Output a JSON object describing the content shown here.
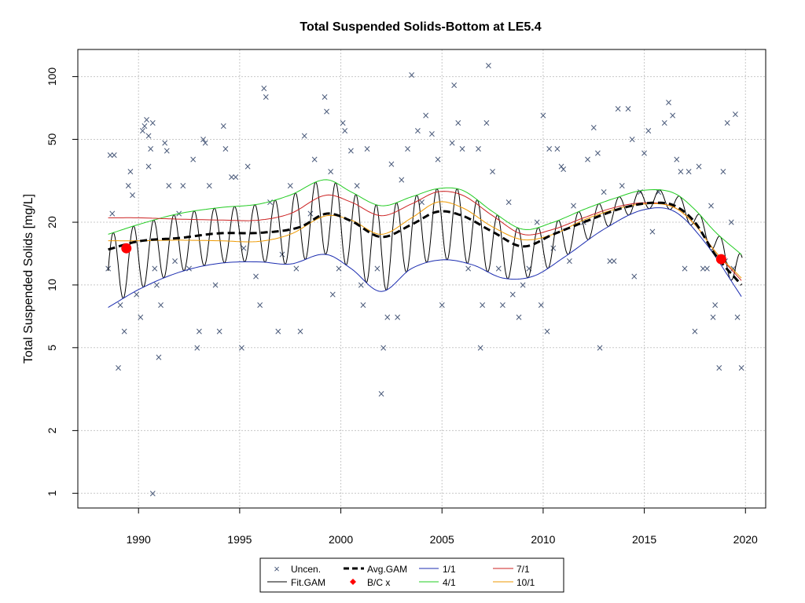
{
  "chart_data": {
    "type": "line",
    "title": "Total Suspended Solids-Bottom at LE5.4",
    "xlabel": "",
    "ylabel": "Total Suspended Solids [mg/L]",
    "xlim": [
      1987.0,
      2021.0
    ],
    "ylim": [
      0.85,
      135
    ],
    "yscale": "log",
    "grid": true,
    "x_ticks": [
      1990,
      1995,
      2000,
      2005,
      2010,
      2015,
      2020
    ],
    "y_ticks": [
      1,
      2,
      5,
      10,
      20,
      50,
      100
    ],
    "legend": {
      "placement": "bottom",
      "entries": [
        "Uncen.",
        "Avg.GAM",
        "1/1",
        "7/1",
        "Fit.GAM",
        "B/C x",
        "4/1",
        "10/1"
      ]
    },
    "colors": {
      "points": "#4a5a7a",
      "fit": "#000000",
      "avg": "#000000",
      "jan": "#1c2db0",
      "apr": "#22cc22",
      "jul": "#cc2222",
      "oct": "#ee9900",
      "bc": "#ff0000",
      "grid": "#c8c8c8"
    },
    "series": [
      {
        "name": "Avg.GAM",
        "style": "dashed",
        "x": [
          1988.5,
          1990,
          1992,
          1994,
          1996,
          1998,
          1999.3,
          2000.5,
          2002,
          2003.5,
          2004.8,
          2006,
          2007.5,
          2009,
          2010.5,
          2012,
          2014,
          2015.5,
          2016.5,
          2017.5,
          2018.5,
          2019.8
        ],
        "y": [
          14.8,
          16.2,
          16.8,
          17.7,
          17.8,
          19.0,
          22.0,
          20.3,
          17.0,
          19.5,
          22.5,
          21.5,
          18.0,
          15.3,
          17.5,
          20.0,
          23.5,
          24.8,
          24.0,
          20.0,
          14.0,
          10.0
        ]
      },
      {
        "name": "1/1",
        "x": [
          1988.5,
          1990,
          1992,
          1994,
          1996,
          1997.5,
          1999.3,
          2000.5,
          2002,
          2003.5,
          2005,
          2006.5,
          2008,
          2009.5,
          2011,
          2013,
          2015,
          2016.5,
          2018,
          2019.8
        ],
        "y": [
          7.8,
          9.5,
          11.5,
          12.7,
          12.9,
          12.6,
          14.0,
          12.0,
          9.3,
          12.0,
          13.2,
          12.5,
          10.8,
          11.0,
          13.5,
          18.5,
          23.0,
          22.5,
          16.0,
          8.8
        ]
      },
      {
        "name": "4/1",
        "x": [
          1988.5,
          1990,
          1992,
          1994,
          1996,
          1997.5,
          1999.3,
          2000.5,
          2002,
          2003.5,
          2004.8,
          2006,
          2007.5,
          2009,
          2010.5,
          2012,
          2013.5,
          2015,
          2016.5,
          2017.5,
          2018.5,
          2019.8
        ],
        "y": [
          17.5,
          19.5,
          22.0,
          23.5,
          24.5,
          27.0,
          32.0,
          28.0,
          24.0,
          26.5,
          29.0,
          28.5,
          22.5,
          18.5,
          20.0,
          23.0,
          26.0,
          28.5,
          27.5,
          23.0,
          18.0,
          14.0
        ]
      },
      {
        "name": "7/1",
        "x": [
          1988.5,
          1990,
          1992,
          1994,
          1996,
          1997.5,
          1999.3,
          2000.5,
          2002,
          2003.5,
          2004.8,
          2006,
          2007.5,
          2009,
          2010.5,
          2012,
          2013.5,
          2015,
          2016.5,
          2017.5,
          2018.5,
          2019.8
        ],
        "y": [
          21.0,
          21.0,
          20.7,
          20.5,
          20.5,
          22.0,
          27.0,
          25.0,
          21.5,
          24.5,
          28.0,
          27.0,
          21.5,
          17.5,
          18.5,
          21.0,
          23.5,
          24.8,
          23.5,
          19.5,
          14.5,
          10.5
        ]
      },
      {
        "name": "10/1",
        "x": [
          1988.5,
          1990,
          1992,
          1994,
          1996,
          1997.5,
          1999.3,
          2000.5,
          2002,
          2003.5,
          2004.8,
          2006,
          2007.5,
          2009,
          2010.5,
          2012,
          2013.5,
          2015,
          2016.5,
          2017.5,
          2018.5,
          2019.8
        ],
        "y": [
          16.3,
          16.3,
          16.4,
          16.3,
          16.2,
          17.5,
          21.5,
          20.5,
          17.5,
          21.0,
          25.0,
          23.5,
          19.0,
          16.5,
          17.5,
          20.5,
          23.0,
          24.5,
          23.5,
          19.5,
          14.5,
          10.8
        ]
      }
    ],
    "fit_gam_note": "oscillating seasonal fit; troughs near 1/1 curve, peaks near 4/1 curve",
    "bc_points": [
      {
        "x": 1989.4,
        "y": 15.0
      },
      {
        "x": 2018.8,
        "y": 13.3
      }
    ],
    "points": [
      {
        "x": 1988.6,
        "y": 42
      },
      {
        "x": 1988.8,
        "y": 42
      },
      {
        "x": 1988.5,
        "y": 12
      },
      {
        "x": 1988.7,
        "y": 22
      },
      {
        "x": 1989.0,
        "y": 4
      },
      {
        "x": 1989.1,
        "y": 8
      },
      {
        "x": 1989.3,
        "y": 6
      },
      {
        "x": 1989.5,
        "y": 30
      },
      {
        "x": 1989.6,
        "y": 35
      },
      {
        "x": 1989.7,
        "y": 27
      },
      {
        "x": 1989.9,
        "y": 9
      },
      {
        "x": 1990.1,
        "y": 7
      },
      {
        "x": 1990.2,
        "y": 55
      },
      {
        "x": 1990.3,
        "y": 58
      },
      {
        "x": 1990.4,
        "y": 62
      },
      {
        "x": 1990.5,
        "y": 52
      },
      {
        "x": 1990.6,
        "y": 45
      },
      {
        "x": 1990.5,
        "y": 37
      },
      {
        "x": 1990.7,
        "y": 60
      },
      {
        "x": 1990.8,
        "y": 12
      },
      {
        "x": 1990.9,
        "y": 10
      },
      {
        "x": 1991.0,
        "y": 4.5
      },
      {
        "x": 1990.7,
        "y": 1.0
      },
      {
        "x": 1991.1,
        "y": 8
      },
      {
        "x": 1991.3,
        "y": 48
      },
      {
        "x": 1991.4,
        "y": 44
      },
      {
        "x": 1991.5,
        "y": 30
      },
      {
        "x": 1991.8,
        "y": 13
      },
      {
        "x": 1992.0,
        "y": 22
      },
      {
        "x": 1992.2,
        "y": 30
      },
      {
        "x": 1992.5,
        "y": 12
      },
      {
        "x": 1992.7,
        "y": 40
      },
      {
        "x": 1992.9,
        "y": 5
      },
      {
        "x": 1993.0,
        "y": 6
      },
      {
        "x": 1993.2,
        "y": 50
      },
      {
        "x": 1993.3,
        "y": 48
      },
      {
        "x": 1993.5,
        "y": 30
      },
      {
        "x": 1993.8,
        "y": 10
      },
      {
        "x": 1994.0,
        "y": 6
      },
      {
        "x": 1994.2,
        "y": 58
      },
      {
        "x": 1994.3,
        "y": 45
      },
      {
        "x": 1994.6,
        "y": 33
      },
      {
        "x": 1994.8,
        "y": 33
      },
      {
        "x": 1995.1,
        "y": 5
      },
      {
        "x": 1995.2,
        "y": 15
      },
      {
        "x": 1995.4,
        "y": 37
      },
      {
        "x": 1995.8,
        "y": 11
      },
      {
        "x": 1996.0,
        "y": 8
      },
      {
        "x": 1996.2,
        "y": 88
      },
      {
        "x": 1996.3,
        "y": 80
      },
      {
        "x": 1996.5,
        "y": 25
      },
      {
        "x": 1996.9,
        "y": 6
      },
      {
        "x": 1997.1,
        "y": 14
      },
      {
        "x": 1997.5,
        "y": 30
      },
      {
        "x": 1997.8,
        "y": 12
      },
      {
        "x": 1998.0,
        "y": 6
      },
      {
        "x": 1998.2,
        "y": 52
      },
      {
        "x": 1998.5,
        "y": 22
      },
      {
        "x": 1998.7,
        "y": 40
      },
      {
        "x": 1999.2,
        "y": 80
      },
      {
        "x": 1999.3,
        "y": 68
      },
      {
        "x": 1999.5,
        "y": 35
      },
      {
        "x": 1999.6,
        "y": 9
      },
      {
        "x": 1999.9,
        "y": 12
      },
      {
        "x": 2000.1,
        "y": 60
      },
      {
        "x": 2000.2,
        "y": 55
      },
      {
        "x": 2000.5,
        "y": 44
      },
      {
        "x": 2000.8,
        "y": 30
      },
      {
        "x": 2001.0,
        "y": 10
      },
      {
        "x": 2001.1,
        "y": 8
      },
      {
        "x": 2001.3,
        "y": 45
      },
      {
        "x": 2001.8,
        "y": 12
      },
      {
        "x": 2002.0,
        "y": 3
      },
      {
        "x": 2002.1,
        "y": 5
      },
      {
        "x": 2002.3,
        "y": 7
      },
      {
        "x": 2002.5,
        "y": 38
      },
      {
        "x": 2002.8,
        "y": 7
      },
      {
        "x": 2003.0,
        "y": 32
      },
      {
        "x": 2003.3,
        "y": 45
      },
      {
        "x": 2003.5,
        "y": 102
      },
      {
        "x": 2003.8,
        "y": 55
      },
      {
        "x": 2004.0,
        "y": 25
      },
      {
        "x": 2004.2,
        "y": 65
      },
      {
        "x": 2004.5,
        "y": 53
      },
      {
        "x": 2004.8,
        "y": 40
      },
      {
        "x": 2005.0,
        "y": 8
      },
      {
        "x": 2005.5,
        "y": 48
      },
      {
        "x": 2005.6,
        "y": 91
      },
      {
        "x": 2005.8,
        "y": 60
      },
      {
        "x": 2006.0,
        "y": 45
      },
      {
        "x": 2006.3,
        "y": 12
      },
      {
        "x": 2006.8,
        "y": 45
      },
      {
        "x": 2006.9,
        "y": 5
      },
      {
        "x": 2007.0,
        "y": 8
      },
      {
        "x": 2007.2,
        "y": 60
      },
      {
        "x": 2007.3,
        "y": 113
      },
      {
        "x": 2007.5,
        "y": 35
      },
      {
        "x": 2007.8,
        "y": 12
      },
      {
        "x": 2008.0,
        "y": 8
      },
      {
        "x": 2008.3,
        "y": 25
      },
      {
        "x": 2008.5,
        "y": 9
      },
      {
        "x": 2008.8,
        "y": 7
      },
      {
        "x": 2009.0,
        "y": 10
      },
      {
        "x": 2009.3,
        "y": 12
      },
      {
        "x": 2009.7,
        "y": 20
      },
      {
        "x": 2009.9,
        "y": 8
      },
      {
        "x": 2010.0,
        "y": 65
      },
      {
        "x": 2010.2,
        "y": 6
      },
      {
        "x": 2010.3,
        "y": 45
      },
      {
        "x": 2010.5,
        "y": 15
      },
      {
        "x": 2010.7,
        "y": 45
      },
      {
        "x": 2010.9,
        "y": 37
      },
      {
        "x": 2011.0,
        "y": 36
      },
      {
        "x": 2011.3,
        "y": 13
      },
      {
        "x": 2011.5,
        "y": 24
      },
      {
        "x": 2012.0,
        "y": 20
      },
      {
        "x": 2012.2,
        "y": 40
      },
      {
        "x": 2012.5,
        "y": 57
      },
      {
        "x": 2012.7,
        "y": 43
      },
      {
        "x": 2012.8,
        "y": 5
      },
      {
        "x": 2013.0,
        "y": 28
      },
      {
        "x": 2013.3,
        "y": 13
      },
      {
        "x": 2013.5,
        "y": 13
      },
      {
        "x": 2013.7,
        "y": 70
      },
      {
        "x": 2013.9,
        "y": 30
      },
      {
        "x": 2014.2,
        "y": 70
      },
      {
        "x": 2014.4,
        "y": 50
      },
      {
        "x": 2014.5,
        "y": 11
      },
      {
        "x": 2014.8,
        "y": 28
      },
      {
        "x": 2015.0,
        "y": 43
      },
      {
        "x": 2015.2,
        "y": 55
      },
      {
        "x": 2015.4,
        "y": 18
      },
      {
        "x": 2015.7,
        "y": 28
      },
      {
        "x": 2016.0,
        "y": 60
      },
      {
        "x": 2016.2,
        "y": 75
      },
      {
        "x": 2016.4,
        "y": 65
      },
      {
        "x": 2016.6,
        "y": 40
      },
      {
        "x": 2016.8,
        "y": 35
      },
      {
        "x": 2017.0,
        "y": 12
      },
      {
        "x": 2017.2,
        "y": 35
      },
      {
        "x": 2017.5,
        "y": 6
      },
      {
        "x": 2017.7,
        "y": 37
      },
      {
        "x": 2017.9,
        "y": 12
      },
      {
        "x": 2018.1,
        "y": 12
      },
      {
        "x": 2018.3,
        "y": 24
      },
      {
        "x": 2018.4,
        "y": 7
      },
      {
        "x": 2018.5,
        "y": 8
      },
      {
        "x": 2018.7,
        "y": 4
      },
      {
        "x": 2018.9,
        "y": 35
      },
      {
        "x": 2019.0,
        "y": 13
      },
      {
        "x": 2019.1,
        "y": 60
      },
      {
        "x": 2019.3,
        "y": 20
      },
      {
        "x": 2019.4,
        "y": 12
      },
      {
        "x": 2019.5,
        "y": 66
      },
      {
        "x": 2019.6,
        "y": 7
      },
      {
        "x": 2019.8,
        "y": 4
      }
    ]
  }
}
